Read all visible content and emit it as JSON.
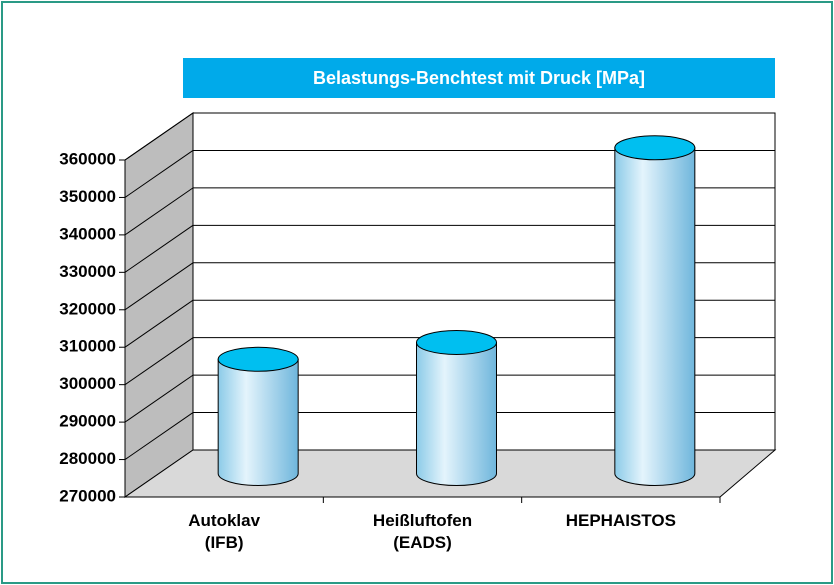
{
  "chart_data": {
    "type": "cylinder-bar",
    "title": "Belastungs-Benchtest mit Druck [MPa]",
    "categories": [
      "Autoklav\n(IFB)",
      "Heißluftofen\n(EADS)",
      "HEPHAISTOS"
    ],
    "values": [
      300500,
      305000,
      357000
    ],
    "color": "#00bff0",
    "ylim": [
      270000,
      360000
    ],
    "yticks": [
      270000,
      280000,
      290000,
      300000,
      310000,
      320000,
      330000,
      340000,
      350000,
      360000
    ],
    "grid": true
  }
}
